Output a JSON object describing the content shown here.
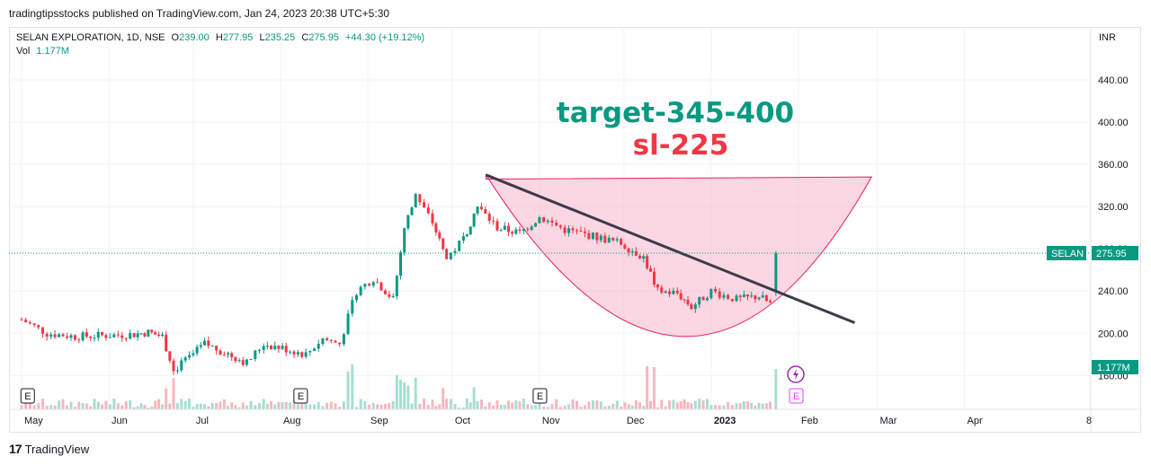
{
  "header": {
    "publish_text": "tradingtipsstocks published on TradingView.com, Jan 24, 2023 20:38 UTC+5:30"
  },
  "legend": {
    "symbol": "SELAN EXPLORATION, 1D, NSE",
    "o_label": "O",
    "o_value": "239.00",
    "h_label": "H",
    "h_value": "277.95",
    "l_label": "L",
    "l_value": "235.25",
    "c_label": "C",
    "c_value": "275.95",
    "change": "+44.30 (+19.12%)",
    "vol_label": "Vol",
    "vol_value": "1.177M"
  },
  "footer": {
    "brand": "TradingView",
    "logo": "17"
  },
  "colors": {
    "up": "#089981",
    "down": "#f23645",
    "annotation_target": "#089981",
    "annotation_sl": "#f23645",
    "pattern_fill": "#f8bbd0",
    "trendline": "#3e3a4a"
  },
  "chart_data": {
    "type": "candlestick",
    "currency": "INR",
    "y_ticks": [
      "440.00",
      "400.00",
      "360.00",
      "320.00",
      "280.00",
      "240.00",
      "200.00",
      "160.00"
    ],
    "ylim": [
      145,
      485
    ],
    "x_ticks": [
      "May",
      "Jun",
      "Jul",
      "Aug",
      "Sep",
      "Oct",
      "Nov",
      "Dec",
      "2023",
      "Feb",
      "Mar",
      "Apr",
      "8"
    ],
    "last_price_label": "SELAN",
    "last_price": "275.95",
    "volume_label": "1.177M",
    "annotations": {
      "target": "target-345-400",
      "stop_loss": "sl-225"
    },
    "earnings_marker": "E",
    "closes": [
      {
        "m": "May",
        "d": 1,
        "c": 213
      },
      {
        "m": "May",
        "d": 10,
        "c": 200
      },
      {
        "m": "May",
        "d": 20,
        "c": 197
      },
      {
        "m": "May",
        "d": 31,
        "c": 198
      },
      {
        "m": "Jun",
        "d": 10,
        "c": 199
      },
      {
        "m": "Jun",
        "d": 15,
        "c": 201
      },
      {
        "m": "Jun",
        "d": 20,
        "c": 197
      },
      {
        "m": "Jun",
        "d": 24,
        "c": 165
      },
      {
        "m": "Jul",
        "d": 1,
        "c": 180
      },
      {
        "m": "Jul",
        "d": 5,
        "c": 190
      },
      {
        "m": "Jul",
        "d": 12,
        "c": 182
      },
      {
        "m": "Jul",
        "d": 20,
        "c": 172
      },
      {
        "m": "Jul",
        "d": 26,
        "c": 190
      },
      {
        "m": "Aug",
        "d": 3,
        "c": 185
      },
      {
        "m": "Aug",
        "d": 10,
        "c": 180
      },
      {
        "m": "Aug",
        "d": 16,
        "c": 195
      },
      {
        "m": "Aug",
        "d": 22,
        "c": 190
      },
      {
        "m": "Aug",
        "d": 28,
        "c": 240
      },
      {
        "m": "Sep",
        "d": 3,
        "c": 252
      },
      {
        "m": "Sep",
        "d": 10,
        "c": 232
      },
      {
        "m": "Sep",
        "d": 14,
        "c": 300
      },
      {
        "m": "Sep",
        "d": 18,
        "c": 330
      },
      {
        "m": "Sep",
        "d": 24,
        "c": 305
      },
      {
        "m": "Sep",
        "d": 29,
        "c": 270
      },
      {
        "m": "Oct",
        "d": 5,
        "c": 290
      },
      {
        "m": "Oct",
        "d": 10,
        "c": 320
      },
      {
        "m": "Oct",
        "d": 17,
        "c": 300
      },
      {
        "m": "Oct",
        "d": 25,
        "c": 295
      },
      {
        "m": "Nov",
        "d": 1,
        "c": 310
      },
      {
        "m": "Nov",
        "d": 10,
        "c": 298
      },
      {
        "m": "Nov",
        "d": 20,
        "c": 292
      },
      {
        "m": "Nov",
        "d": 30,
        "c": 285
      },
      {
        "m": "Dec",
        "d": 8,
        "c": 272
      },
      {
        "m": "Dec",
        "d": 13,
        "c": 240
      },
      {
        "m": "Dec",
        "d": 20,
        "c": 238
      },
      {
        "m": "Dec",
        "d": 25,
        "c": 225
      },
      {
        "m": "Jan",
        "d": 1,
        "c": 240
      },
      {
        "m": "Jan",
        "d": 10,
        "c": 232
      },
      {
        "m": "Jan",
        "d": 18,
        "c": 235
      },
      {
        "m": "Jan",
        "d": 22,
        "c": 228
      },
      {
        "m": "Jan",
        "d": 24,
        "c": 275.95
      }
    ],
    "cup_pattern": {
      "left": {
        "m": "Oct",
        "d": 13,
        "p": 350
      },
      "bottom": {
        "m": "Dec",
        "d": 25,
        "p": 197
      },
      "right": {
        "m": "Feb",
        "d": 27,
        "p": 348
      }
    },
    "trendline": {
      "start": {
        "m": "Oct",
        "d": 13,
        "p": 350
      },
      "end": {
        "m": "Feb",
        "d": 21,
        "p": 210
      }
    }
  }
}
